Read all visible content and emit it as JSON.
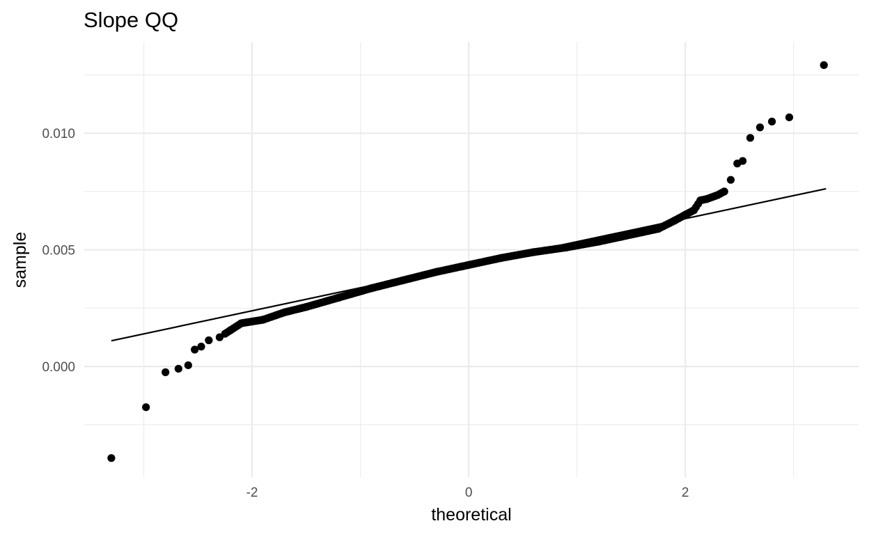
{
  "chart_data": {
    "type": "scatter",
    "title": "Slope QQ",
    "xlabel": "theoretical",
    "ylabel": "sample",
    "xlim": [
      -3.55,
      3.6
    ],
    "ylim": [
      -0.00475,
      0.01392
    ],
    "x_major_ticks": [
      -2,
      0,
      2
    ],
    "x_tick_labels": [
      "-2",
      "0",
      "2"
    ],
    "x_minor_ticks": [
      -3,
      -1,
      1,
      3
    ],
    "y_major_ticks": [
      0.0,
      0.005,
      0.01
    ],
    "y_tick_labels": [
      "0.000",
      "0.005",
      "0.010"
    ],
    "y_minor_ticks": [
      -0.0025,
      0.0025,
      0.0075,
      0.0125
    ],
    "grid": true,
    "legend": "none",
    "colors": {
      "points": "#000000",
      "line": "#000000",
      "grid": "#ebebeb",
      "background": "#ffffff"
    },
    "reference_line": {
      "x": [
        -3.3,
        3.3
      ],
      "y": [
        0.0011,
        0.00762
      ]
    },
    "series": [
      {
        "anchors_x": [
          -3.3,
          -2.98,
          -2.8,
          -2.68,
          -2.59,
          -2.53,
          -2.47,
          -2.4,
          -2.3,
          -2.2,
          -2.1,
          -1.9,
          -1.7,
          -1.5,
          -1.2,
          -0.9,
          -0.6,
          -0.3,
          0.0,
          0.3,
          0.6,
          0.9,
          1.2,
          1.4,
          1.6,
          1.75,
          1.9,
          2.0,
          2.08,
          2.14,
          2.2,
          2.3,
          2.36
        ],
        "anchors_y": [
          -0.00393,
          -0.00175,
          -0.00025,
          -0.0001,
          5e-05,
          0.00072,
          0.00085,
          0.00112,
          0.00125,
          0.00155,
          0.00185,
          0.002,
          0.00232,
          0.00255,
          0.00295,
          0.00335,
          0.0037,
          0.00405,
          0.00435,
          0.00465,
          0.0049,
          0.0051,
          0.00535,
          0.00555,
          0.00575,
          0.0059,
          0.00625,
          0.0065,
          0.0067,
          0.00712,
          0.00718,
          0.00735,
          0.0075
        ],
        "tail": [
          [
            2.42,
            0.008
          ],
          [
            2.48,
            0.0087
          ],
          [
            2.53,
            0.00881
          ],
          [
            2.6,
            0.0098
          ],
          [
            2.69,
            0.01025
          ],
          [
            2.8,
            0.0105
          ],
          [
            2.96,
            0.01068
          ],
          [
            3.28,
            0.01292
          ]
        ],
        "dense_range": [
          -2.25,
          2.36
        ],
        "dense_count": 230
      }
    ]
  }
}
